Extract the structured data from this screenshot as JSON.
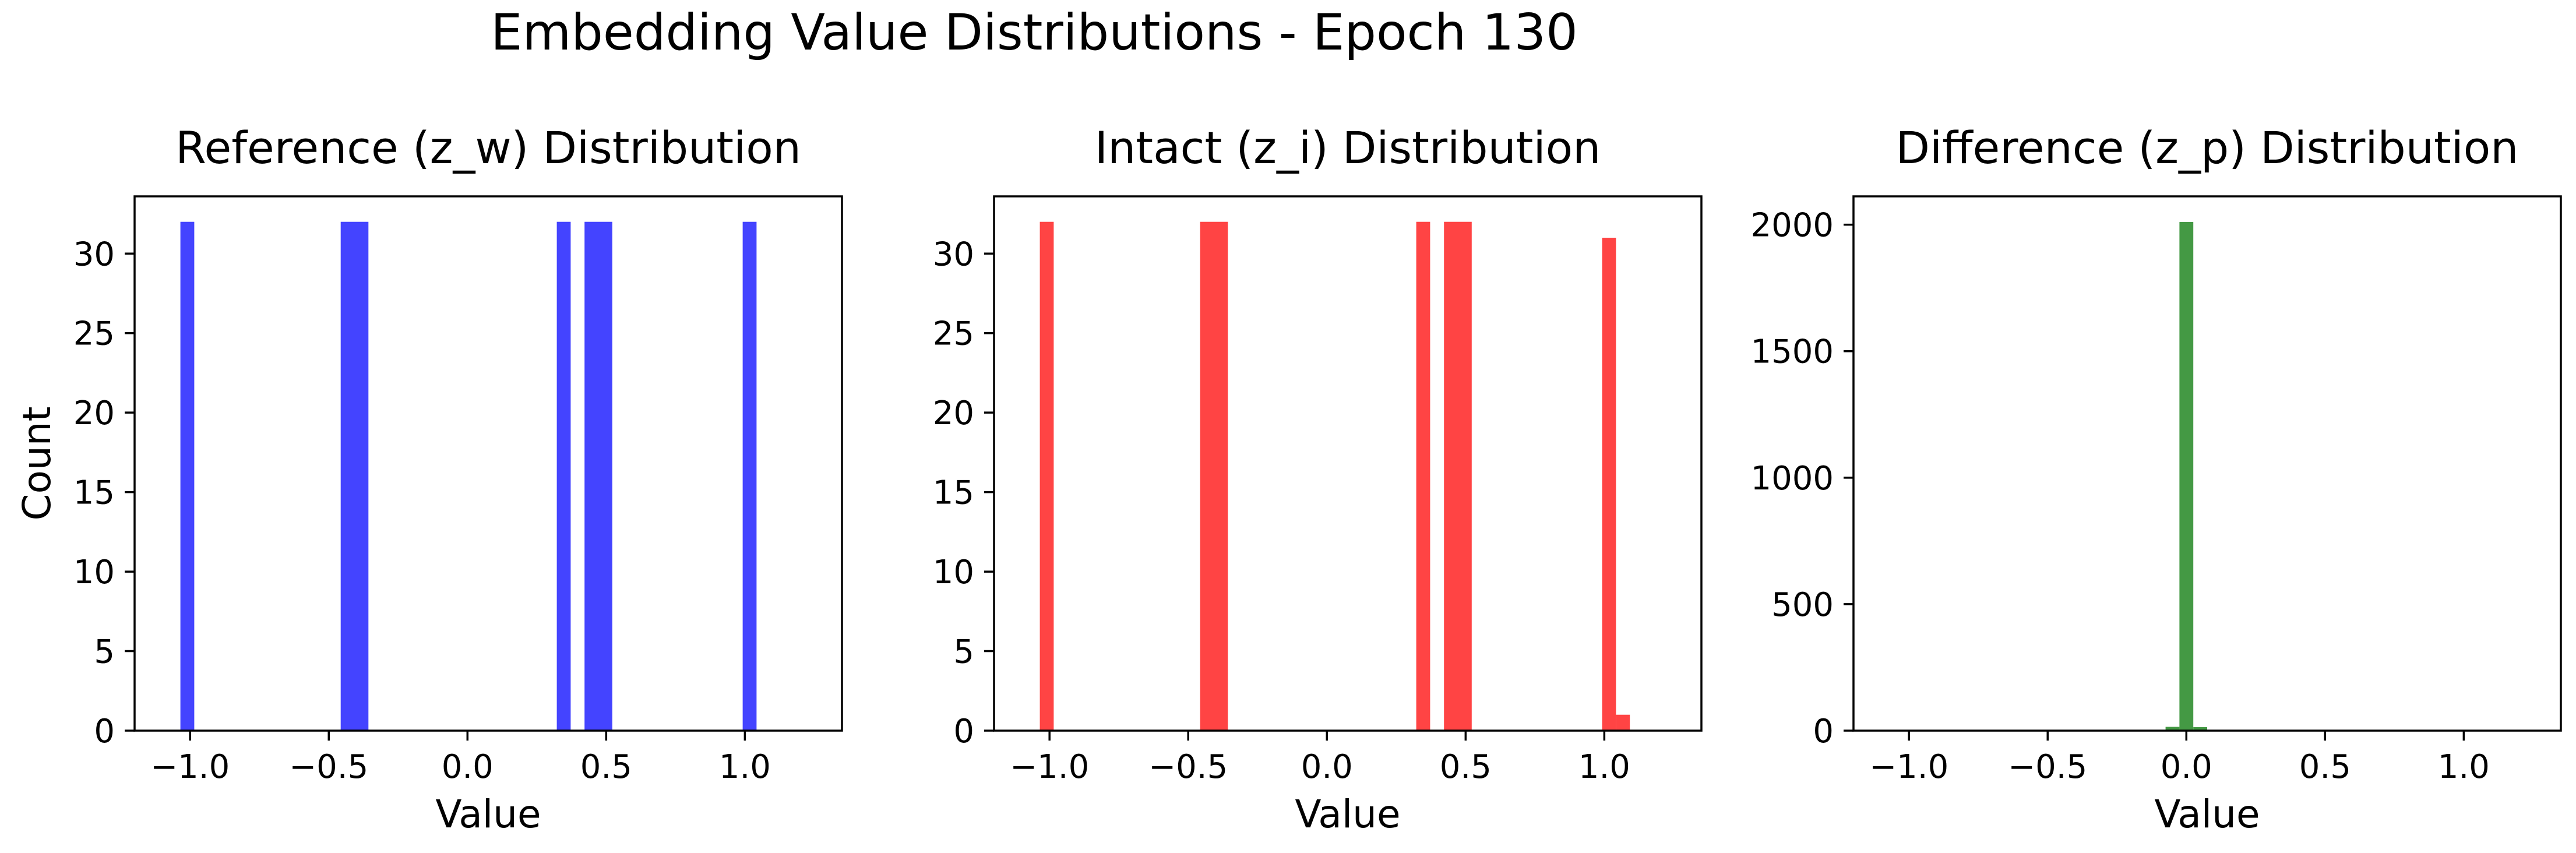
{
  "suptitle": "Embedding Value Distributions - Epoch 130",
  "chart_data": [
    {
      "type": "bar",
      "title": "Reference (z_w) Distribution",
      "xlabel": "Value",
      "ylabel": "Count",
      "xlim": [
        -1.2,
        1.35
      ],
      "ylim": [
        0,
        33.6
      ],
      "xticks": [
        -1.0,
        -0.5,
        0.0,
        0.5,
        1.0
      ],
      "xtick_labels": [
        "−1.0",
        "−0.5",
        "0.0",
        "0.5",
        "1.0"
      ],
      "yticks": [
        0,
        5,
        10,
        15,
        20,
        25,
        30
      ],
      "ytick_labels": [
        "0",
        "5",
        "10",
        "15",
        "20",
        "25",
        "30"
      ],
      "color": "#4444ff",
      "bin_edges": [
        -1.035,
        -0.985,
        -0.457,
        -0.407,
        -0.357,
        0.322,
        0.372,
        0.422,
        0.472,
        0.522,
        0.992,
        1.042
      ],
      "bars": [
        {
          "x0": -1.035,
          "x1": -0.985,
          "value": 32
        },
        {
          "x0": -0.457,
          "x1": -0.407,
          "value": 32
        },
        {
          "x0": -0.407,
          "x1": -0.357,
          "value": 32
        },
        {
          "x0": 0.322,
          "x1": 0.372,
          "value": 32
        },
        {
          "x0": 0.422,
          "x1": 0.472,
          "value": 32
        },
        {
          "x0": 0.472,
          "x1": 0.522,
          "value": 32
        },
        {
          "x0": 0.992,
          "x1": 1.042,
          "value": 32
        }
      ]
    },
    {
      "type": "bar",
      "title": "Intact (z_i) Distribution",
      "xlabel": "Value",
      "ylabel": "",
      "xlim": [
        -1.2,
        1.35
      ],
      "ylim": [
        0,
        33.6
      ],
      "xticks": [
        -1.0,
        -0.5,
        0.0,
        0.5,
        1.0
      ],
      "xtick_labels": [
        "−1.0",
        "−0.5",
        "0.0",
        "0.5",
        "1.0"
      ],
      "yticks": [
        0,
        5,
        10,
        15,
        20,
        25,
        30
      ],
      "ytick_labels": [
        "0",
        "5",
        "10",
        "15",
        "20",
        "25",
        "30"
      ],
      "color": "#ff4444",
      "bars": [
        {
          "x0": -1.035,
          "x1": -0.985,
          "value": 32
        },
        {
          "x0": -0.457,
          "x1": -0.407,
          "value": 32
        },
        {
          "x0": -0.407,
          "x1": -0.357,
          "value": 32
        },
        {
          "x0": 0.322,
          "x1": 0.372,
          "value": 32
        },
        {
          "x0": 0.422,
          "x1": 0.472,
          "value": 32
        },
        {
          "x0": 0.472,
          "x1": 0.522,
          "value": 32
        },
        {
          "x0": 0.992,
          "x1": 1.042,
          "value": 31
        },
        {
          "x0": 1.042,
          "x1": 1.092,
          "value": 1
        }
      ]
    },
    {
      "type": "bar",
      "title": "Difference (z_p) Distribution",
      "xlabel": "Value",
      "ylabel": "",
      "xlim": [
        -1.2,
        1.35
      ],
      "ylim": [
        0,
        2112
      ],
      "xticks": [
        -1.0,
        -0.5,
        0.0,
        0.5,
        1.0
      ],
      "xtick_labels": [
        "−1.0",
        "−0.5",
        "0.0",
        "0.5",
        "1.0"
      ],
      "yticks": [
        0,
        500,
        1000,
        1500,
        2000
      ],
      "ytick_labels": [
        "0",
        "500",
        "1000",
        "1500",
        "2000"
      ],
      "color": "#449944",
      "bars": [
        {
          "x0": -0.075,
          "x1": -0.025,
          "value": 15
        },
        {
          "x0": -0.025,
          "x1": 0.025,
          "value": 2011
        },
        {
          "x0": 0.025,
          "x1": 0.075,
          "value": 14
        }
      ]
    }
  ]
}
